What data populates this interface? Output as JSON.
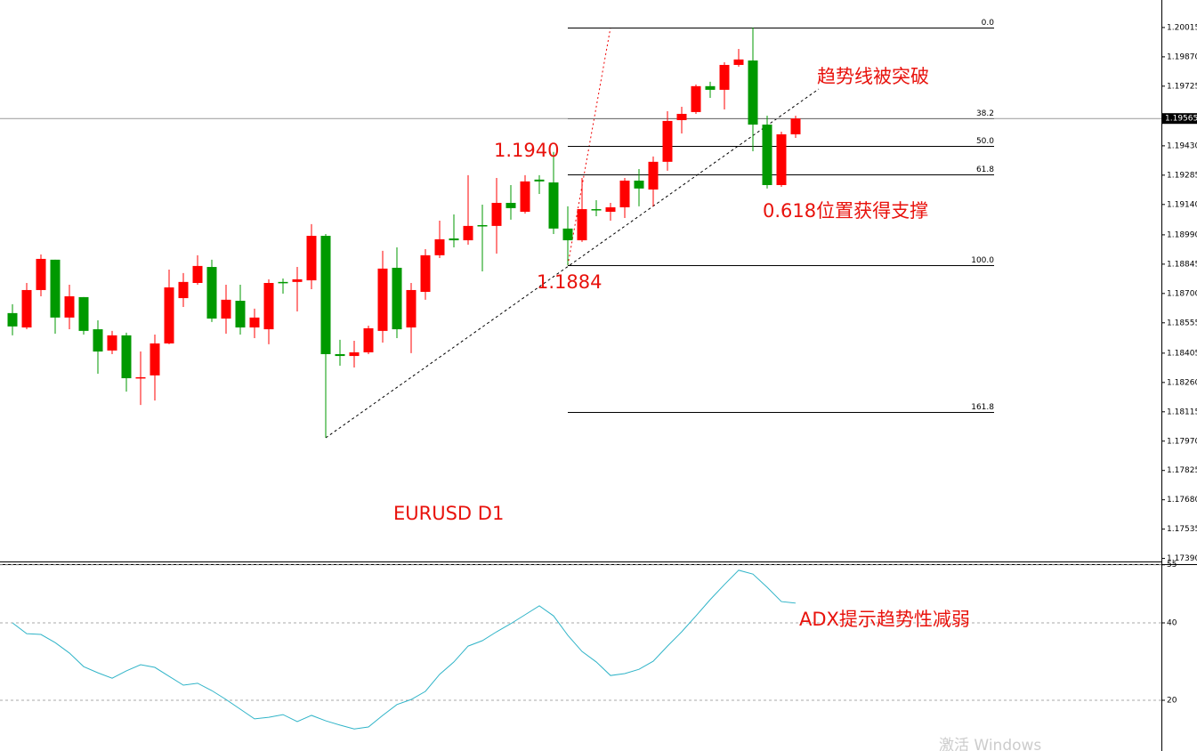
{
  "chart_data": [
    {
      "type": "candlestick",
      "title": "EURUSD D1",
      "open": [
        1.18603,
        1.18532,
        1.18717,
        1.18867,
        1.18581,
        1.18682,
        1.18523,
        1.18418,
        1.18493,
        1.18281,
        1.18295,
        1.18453,
        1.18677,
        1.18752,
        1.18831,
        1.18576,
        1.18664,
        1.18532,
        1.18523,
        1.18757,
        1.18757,
        1.18765,
        1.18985,
        1.184,
        1.18391,
        1.18409,
        1.18515,
        1.18827,
        1.18532,
        1.18708,
        1.18889,
        1.18972,
        1.18963,
        1.19038,
        1.19034,
        1.19148,
        1.19104,
        1.19263,
        1.19249,
        1.19021,
        1.18963,
        1.19117,
        1.19104,
        1.19126,
        1.19258,
        1.19214,
        1.19351,
        1.19557,
        1.19597,
        1.19725,
        1.19707,
        1.1983,
        1.19852,
        1.19535,
        1.19236,
        1.19487
      ],
      "high": [
        1.18647,
        1.18752,
        1.18893,
        1.18867,
        1.18743,
        1.18682,
        1.18567,
        1.18515,
        1.18506,
        1.18413,
        1.18497,
        1.18818,
        1.18801,
        1.18889,
        1.18867,
        1.18743,
        1.18743,
        1.18625,
        1.1877,
        1.18774,
        1.18831,
        1.19043,
        1.18994,
        1.18471,
        1.18466,
        1.18541,
        1.18911,
        1.18928,
        1.18752,
        1.18919,
        1.1906,
        1.19091,
        1.19285,
        1.19139,
        1.19271,
        1.19236,
        1.19285,
        1.19285,
        1.194,
        1.19131,
        1.19271,
        1.19161,
        1.19148,
        1.19271,
        1.19315,
        1.19377,
        1.19601,
        1.19623,
        1.19733,
        1.19747,
        1.19843,
        1.19909,
        1.20015,
        1.19579,
        1.195,
        1.19579
      ],
      "low": [
        1.18493,
        1.18523,
        1.18686,
        1.18501,
        1.18523,
        1.18497,
        1.18303,
        1.184,
        1.18215,
        1.18149,
        1.18171,
        1.18449,
        1.18633,
        1.18743,
        1.18559,
        1.18501,
        1.18497,
        1.18479,
        1.18449,
        1.18699,
        1.18611,
        1.18721,
        1.17987,
        1.18343,
        1.18334,
        1.184,
        1.18457,
        1.18479,
        1.18405,
        1.18669,
        1.18875,
        1.18928,
        1.18941,
        1.18809,
        1.18897,
        1.19065,
        1.19095,
        1.19192,
        1.18994,
        1.1884,
        1.18955,
        1.19082,
        1.1906,
        1.19073,
        1.19131,
        1.19131,
        1.19307,
        1.19491,
        1.19588,
        1.19667,
        1.1961,
        1.19821,
        1.19403,
        1.19219,
        1.19227,
        1.19469
      ],
      "close": [
        1.18537,
        1.18717,
        1.18871,
        1.18581,
        1.18686,
        1.18515,
        1.18413,
        1.18493,
        1.18281,
        1.18286,
        1.18453,
        1.1873,
        1.18757,
        1.18836,
        1.18576,
        1.18669,
        1.18532,
        1.18581,
        1.18752,
        1.18752,
        1.1877,
        1.18985,
        1.184,
        1.18391,
        1.18409,
        1.18528,
        1.18823,
        1.18523,
        1.18717,
        1.18889,
        1.18968,
        1.18963,
        1.19034,
        1.19034,
        1.19148,
        1.19122,
        1.19254,
        1.19254,
        1.19021,
        1.18963,
        1.19117,
        1.19113,
        1.19126,
        1.19258,
        1.19219,
        1.19351,
        1.19553,
        1.19588,
        1.19725,
        1.19707,
        1.1983,
        1.19857,
        1.19535,
        1.19236,
        1.19487,
        1.19565
      ],
      "up_color": "#ff0000",
      "down_color": "#009900",
      "ylim": [
        1.17375,
        1.20151
      ],
      "yticks": [
        1.20015,
        {
          "value": 1.1987,
          "label": "1.19870"
        },
        1.19725,
        {
          "value": 1.1943,
          "label": "1.19430"
        },
        1.19285,
        {
          "value": 1.1914,
          "label": "1.19140"
        },
        {
          "value": 1.1899,
          "label": "1.18990"
        },
        1.18845,
        {
          "value": 1.187,
          "label": "1.18700"
        },
        1.18555,
        1.18405,
        {
          "value": 1.1826,
          "label": "1.18260"
        },
        1.18115,
        {
          "value": 1.1797,
          "label": "1.17970"
        },
        1.17825,
        {
          "value": 1.1768,
          "label": "1.17680"
        },
        1.17535,
        {
          "value": 1.1739,
          "label": "1.17390"
        }
      ],
      "current_price": 1.19565,
      "fib_levels": [
        {
          "label": "0.0",
          "price": 1.20015
        },
        {
          "label": "38.2",
          "price": 1.19566
        },
        {
          "label": "50.0",
          "price": 1.194275
        },
        {
          "label": "61.8",
          "price": 1.19289
        },
        {
          "label": "100.0",
          "price": 1.1884
        },
        {
          "label": "161.8",
          "price": 1.18114
        }
      ],
      "annotations": [
        "1.1940",
        "1.1884",
        "趋势线被突破",
        "0.618位置获得支撑"
      ]
    },
    {
      "type": "line",
      "color": "#30b4c8",
      "values": [
        40.0,
        37.2,
        37.0,
        34.9,
        32.2,
        28.7,
        27.1,
        25.7,
        27.6,
        29.2,
        28.5,
        26.2,
        23.9,
        24.4,
        22.5,
        20.2,
        17.7,
        15.2,
        15.6,
        16.3,
        14.5,
        16.1,
        14.7,
        13.6,
        12.6,
        13.1,
        16.1,
        18.9,
        20.2,
        22.3,
        26.7,
        29.9,
        34.0,
        35.4,
        37.7,
        39.8,
        42.1,
        44.4,
        41.8,
        36.8,
        32.6,
        29.9,
        26.4,
        26.9,
        28.0,
        30.1,
        34.0,
        37.7,
        41.8,
        46.0,
        49.9,
        53.6,
        52.6,
        49.2,
        45.5,
        45.1
      ],
      "ylim": [
        6.9,
        55.4
      ],
      "yticks": [
        20,
        40,
        55
      ],
      "grid": true,
      "annotations": [
        "ADX提示趋势性减弱"
      ]
    }
  ],
  "watermark": "激活 Windows"
}
